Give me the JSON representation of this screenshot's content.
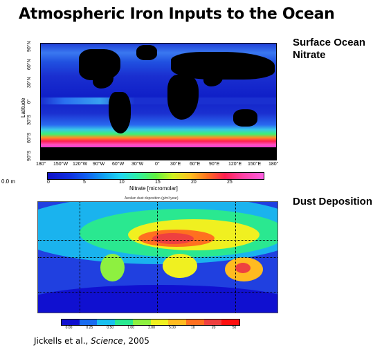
{
  "title": "Atmospheric Iron Inputs to the Ocean",
  "nitrate": {
    "label_line1": "Surface Ocean",
    "label_line2": "Nitrate",
    "lat_title": "Latitude",
    "lat_ticks": [
      "90°N",
      "60°N",
      "30°N",
      "0°",
      "30°S",
      "60°S",
      "90°S"
    ],
    "lon_ticks": [
      "180°",
      "150°W",
      "120°W",
      "90°W",
      "60°W",
      "30°W",
      "0°",
      "30°E",
      "60°E",
      "90°E",
      "120°E",
      "150°E",
      "180°"
    ],
    "depth": "0.0 m",
    "colorbar_ticks": [
      "0",
      "5",
      "10",
      "15",
      "20",
      "25"
    ],
    "colorbar_title": "Nitrate [micromolar]"
  },
  "dust": {
    "label": "Dust Deposition",
    "map_title": "Aeolian dust deposition (g/m²/year)",
    "colorbar_colors": [
      "#1010d0",
      "#1a6cf0",
      "#19c0f0",
      "#2ae890",
      "#8ef040",
      "#f0f020",
      "#ffbb20",
      "#ff7020",
      "#ee4040",
      "#ff1010"
    ],
    "colorbar_ticks": [
      "0.00",
      "0.25",
      "0.50",
      "1.00",
      "2.00",
      "5.00",
      "10",
      "20",
      "50"
    ]
  },
  "citation": {
    "authors": "Jickells et al., ",
    "journal": "Science",
    "year": ", 2005"
  }
}
